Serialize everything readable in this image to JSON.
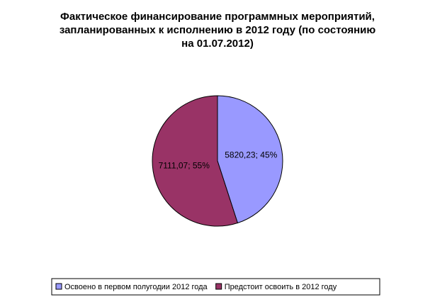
{
  "chart_data": {
    "type": "pie",
    "title": [
      "Фактическое финансирование программных мероприятий,",
      "запланированных к исполнению в 2012 году (по состоянию",
      "на 01.07.2012)"
    ],
    "categories": [
      "Освоено в первом полугодии 2012 года",
      "Предстоит освоить в 2012 году"
    ],
    "values": [
      5820.23,
      7111.07
    ],
    "value_labels": [
      "5820,23; 45%",
      "7111,07; 55%"
    ],
    "colors": [
      "#9999ff",
      "#993366"
    ],
    "legend": "bottom"
  }
}
